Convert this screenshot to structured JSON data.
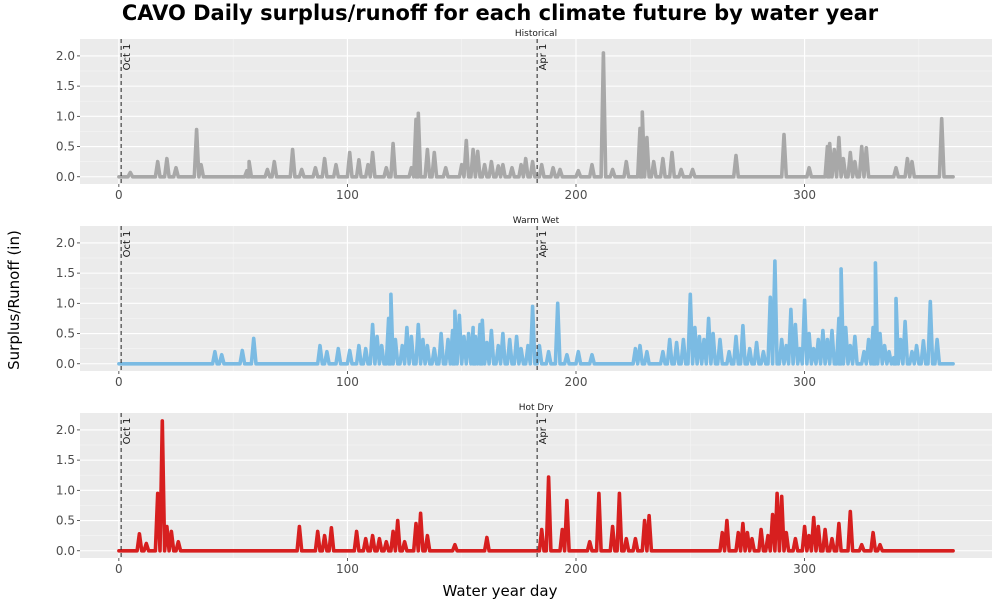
{
  "chart_data": {
    "type": "line",
    "title": "CAVO Daily surplus/runoff for each climate future by water year",
    "xlabel": "Water year day",
    "ylabel": "Surplus/Runoff (in)",
    "xlim": [
      0,
      365
    ],
    "ylim": [
      0,
      2.1
    ],
    "x_ticks": [
      0,
      100,
      200,
      300
    ],
    "y_ticks": [
      0.0,
      0.5,
      1.0,
      1.5,
      2.0
    ],
    "y_tick_labels": [
      "0.0",
      "0.5",
      "1.0",
      "1.5",
      "2.0"
    ],
    "x_tick_labels": [
      "0",
      "100",
      "200",
      "300"
    ],
    "reference_lines": [
      {
        "label": "Oct 1",
        "x": 1
      },
      {
        "label": "Apr 1",
        "x": 183
      }
    ],
    "grid": true,
    "legend": "none",
    "series": [
      {
        "name": "Historical",
        "color": "#a8a8a8",
        "spikes": [
          [
            5,
            0.07
          ],
          [
            17,
            0.25
          ],
          [
            21,
            0.3
          ],
          [
            25,
            0.15
          ],
          [
            34,
            0.78
          ],
          [
            36,
            0.2
          ],
          [
            56,
            0.1
          ],
          [
            57,
            0.25
          ],
          [
            65,
            0.12
          ],
          [
            68,
            0.25
          ],
          [
            76,
            0.45
          ],
          [
            80,
            0.12
          ],
          [
            86,
            0.15
          ],
          [
            90,
            0.3
          ],
          [
            95,
            0.2
          ],
          [
            101,
            0.4
          ],
          [
            105,
            0.28
          ],
          [
            109,
            0.2
          ],
          [
            111,
            0.4
          ],
          [
            117,
            0.15
          ],
          [
            120,
            0.55
          ],
          [
            128,
            0.15
          ],
          [
            130,
            0.95
          ],
          [
            131,
            1.05
          ],
          [
            135,
            0.45
          ],
          [
            138,
            0.4
          ],
          [
            143,
            0.15
          ],
          [
            150,
            0.2
          ],
          [
            152,
            0.6
          ],
          [
            155,
            0.45
          ],
          [
            157,
            0.42
          ],
          [
            160,
            0.2
          ],
          [
            163,
            0.25
          ],
          [
            166,
            0.18
          ],
          [
            168,
            0.2
          ],
          [
            172,
            0.15
          ],
          [
            176,
            0.2
          ],
          [
            178,
            0.3
          ],
          [
            181,
            0.25
          ],
          [
            185,
            0.2
          ],
          [
            190,
            0.15
          ],
          [
            193,
            0.12
          ],
          [
            201,
            0.1
          ],
          [
            207,
            0.2
          ],
          [
            212,
            2.05
          ],
          [
            216,
            0.12
          ],
          [
            222,
            0.25
          ],
          [
            228,
            0.8
          ],
          [
            229,
            1.07
          ],
          [
            231,
            0.65
          ],
          [
            234,
            0.25
          ],
          [
            238,
            0.3
          ],
          [
            242,
            0.4
          ],
          [
            246,
            0.12
          ],
          [
            251,
            0.12
          ],
          [
            270,
            0.35
          ],
          [
            291,
            0.7
          ],
          [
            302,
            0.15
          ],
          [
            310,
            0.5
          ],
          [
            311,
            0.55
          ],
          [
            313,
            0.45
          ],
          [
            315,
            0.65
          ],
          [
            317,
            0.3
          ],
          [
            320,
            0.4
          ],
          [
            322,
            0.25
          ],
          [
            325,
            0.5
          ],
          [
            327,
            0.48
          ],
          [
            340,
            0.15
          ],
          [
            345,
            0.3
          ],
          [
            347,
            0.25
          ],
          [
            360,
            0.96
          ]
        ]
      },
      {
        "name": "Warm Wet",
        "color": "#7bbbe3",
        "spikes": [
          [
            42,
            0.2
          ],
          [
            45,
            0.15
          ],
          [
            54,
            0.22
          ],
          [
            59,
            0.42
          ],
          [
            88,
            0.3
          ],
          [
            91,
            0.2
          ],
          [
            96,
            0.25
          ],
          [
            101,
            0.22
          ],
          [
            105,
            0.3
          ],
          [
            108,
            0.25
          ],
          [
            111,
            0.65
          ],
          [
            113,
            0.45
          ],
          [
            115,
            0.3
          ],
          [
            118,
            0.75
          ],
          [
            119,
            1.15
          ],
          [
            121,
            0.4
          ],
          [
            124,
            0.3
          ],
          [
            126,
            0.6
          ],
          [
            128,
            0.45
          ],
          [
            131,
            0.65
          ],
          [
            133,
            0.4
          ],
          [
            135,
            0.3
          ],
          [
            138,
            0.25
          ],
          [
            141,
            0.5
          ],
          [
            144,
            0.4
          ],
          [
            146,
            0.55
          ],
          [
            147,
            0.87
          ],
          [
            149,
            0.8
          ],
          [
            151,
            0.45
          ],
          [
            153,
            0.5
          ],
          [
            155,
            0.6
          ],
          [
            156,
            0.45
          ],
          [
            158,
            0.65
          ],
          [
            159,
            0.72
          ],
          [
            161,
            0.35
          ],
          [
            163,
            0.55
          ],
          [
            166,
            0.3
          ],
          [
            168,
            0.5
          ],
          [
            171,
            0.4
          ],
          [
            174,
            0.45
          ],
          [
            176,
            0.25
          ],
          [
            179,
            0.3
          ],
          [
            181,
            0.95
          ],
          [
            184,
            0.3
          ],
          [
            188,
            0.2
          ],
          [
            192,
            1.0
          ],
          [
            196,
            0.15
          ],
          [
            201,
            0.2
          ],
          [
            207,
            0.15
          ],
          [
            226,
            0.25
          ],
          [
            228,
            0.3
          ],
          [
            231,
            0.2
          ],
          [
            238,
            0.2
          ],
          [
            241,
            0.4
          ],
          [
            244,
            0.35
          ],
          [
            247,
            0.4
          ],
          [
            250,
            1.15
          ],
          [
            252,
            0.6
          ],
          [
            254,
            0.45
          ],
          [
            256,
            0.4
          ],
          [
            258,
            0.75
          ],
          [
            260,
            0.5
          ],
          [
            263,
            0.4
          ],
          [
            267,
            0.2
          ],
          [
            270,
            0.45
          ],
          [
            273,
            0.63
          ],
          [
            276,
            0.25
          ],
          [
            279,
            0.35
          ],
          [
            282,
            0.2
          ],
          [
            285,
            1.1
          ],
          [
            287,
            1.7
          ],
          [
            290,
            0.4
          ],
          [
            292,
            0.3
          ],
          [
            294,
            0.9
          ],
          [
            296,
            0.65
          ],
          [
            298,
            0.25
          ],
          [
            300,
            1.05
          ],
          [
            302,
            0.5
          ],
          [
            304,
            0.25
          ],
          [
            306,
            0.4
          ],
          [
            308,
            0.55
          ],
          [
            310,
            0.4
          ],
          [
            312,
            0.55
          ],
          [
            315,
            0.75
          ],
          [
            316,
            1.57
          ],
          [
            318,
            0.6
          ],
          [
            320,
            0.3
          ],
          [
            322,
            0.45
          ],
          [
            326,
            0.2
          ],
          [
            328,
            0.4
          ],
          [
            330,
            0.6
          ],
          [
            331,
            1.67
          ],
          [
            333,
            0.5
          ],
          [
            335,
            0.3
          ],
          [
            337,
            0.2
          ],
          [
            339,
            0.1
          ],
          [
            340,
            1.08
          ],
          [
            342,
            0.4
          ],
          [
            344,
            0.7
          ],
          [
            347,
            0.2
          ],
          [
            349,
            0.3
          ],
          [
            352,
            0.38
          ],
          [
            355,
            1.03
          ],
          [
            358,
            0.4
          ]
        ]
      },
      {
        "name": "Hot Dry",
        "color": "#d71f1f",
        "spikes": [
          [
            9,
            0.28
          ],
          [
            12,
            0.12
          ],
          [
            17,
            0.95
          ],
          [
            19,
            2.15
          ],
          [
            21,
            0.4
          ],
          [
            23,
            0.32
          ],
          [
            26,
            0.15
          ],
          [
            79,
            0.4
          ],
          [
            87,
            0.32
          ],
          [
            90,
            0.25
          ],
          [
            93,
            0.38
          ],
          [
            104,
            0.32
          ],
          [
            108,
            0.2
          ],
          [
            111,
            0.25
          ],
          [
            114,
            0.2
          ],
          [
            117,
            0.15
          ],
          [
            120,
            0.32
          ],
          [
            122,
            0.5
          ],
          [
            125,
            0.15
          ],
          [
            130,
            0.45
          ],
          [
            132,
            0.62
          ],
          [
            135,
            0.25
          ],
          [
            147,
            0.1
          ],
          [
            161,
            0.22
          ],
          [
            185,
            0.35
          ],
          [
            188,
            1.22
          ],
          [
            194,
            0.35
          ],
          [
            196,
            0.83
          ],
          [
            206,
            0.15
          ],
          [
            210,
            0.95
          ],
          [
            216,
            0.4
          ],
          [
            219,
            0.95
          ],
          [
            222,
            0.2
          ],
          [
            226,
            0.2
          ],
          [
            230,
            0.5
          ],
          [
            232,
            0.58
          ],
          [
            264,
            0.3
          ],
          [
            266,
            0.5
          ],
          [
            271,
            0.3
          ],
          [
            273,
            0.45
          ],
          [
            275,
            0.3
          ],
          [
            277,
            0.2
          ],
          [
            281,
            0.35
          ],
          [
            284,
            0.25
          ],
          [
            286,
            0.6
          ],
          [
            288,
            0.95
          ],
          [
            290,
            0.9
          ],
          [
            292,
            0.3
          ],
          [
            296,
            0.2
          ],
          [
            300,
            0.4
          ],
          [
            302,
            0.25
          ],
          [
            304,
            0.55
          ],
          [
            306,
            0.4
          ],
          [
            309,
            0.35
          ],
          [
            312,
            0.2
          ],
          [
            315,
            0.45
          ],
          [
            320,
            0.65
          ],
          [
            325,
            0.1
          ],
          [
            330,
            0.3
          ],
          [
            333,
            0.1
          ]
        ]
      }
    ]
  }
}
